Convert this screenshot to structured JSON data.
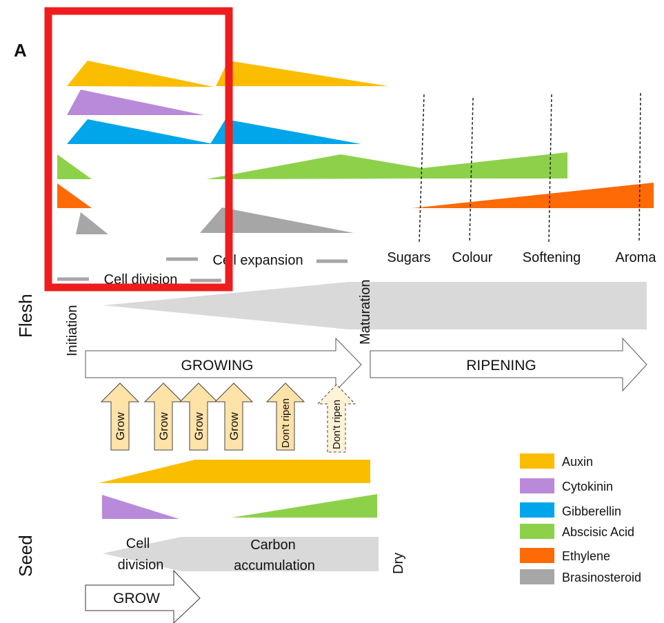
{
  "panel_label": "A",
  "flesh": {
    "side_label": "Flesh",
    "phase_labels": {
      "cell_division": "Cell division",
      "cell_expansion": "Cell expansion"
    },
    "ripening_traits": [
      "Sugars",
      "Colour",
      "Softening",
      "Aroma"
    ],
    "stage_labels": {
      "initiation": "Initiation",
      "maturation": "Maturation"
    },
    "arrows": {
      "growing": "GROWING",
      "ripening": "RIPENING"
    },
    "signals": [
      "Grow",
      "Grow",
      "Grow",
      "Grow",
      "Don't ripen",
      "Don't ripen"
    ]
  },
  "seed": {
    "side_label": "Seed",
    "phase_labels": {
      "cell_division": "Cell division",
      "carbon_accumulation": "Carbon accumulation",
      "dry": "Dry"
    },
    "arrow": "GROW"
  },
  "legend": [
    {
      "label": "Auxin",
      "color": "#fbbd00"
    },
    {
      "label": "Cytokinin",
      "color": "#b98ad9"
    },
    {
      "label": "Gibberellin",
      "color": "#00a6e9"
    },
    {
      "label": "Abscisic Acid",
      "color": "#8dd14a"
    },
    {
      "label": "Ethylene",
      "color": "#fd6a06"
    },
    {
      "label": "Brasinosteroid",
      "color": "#a6a6a6"
    }
  ],
  "colors": {
    "highlight_box": "#ee1c1c",
    "stage_band": "#d9d9d9",
    "signal_arrow": "#ffe2a8"
  }
}
